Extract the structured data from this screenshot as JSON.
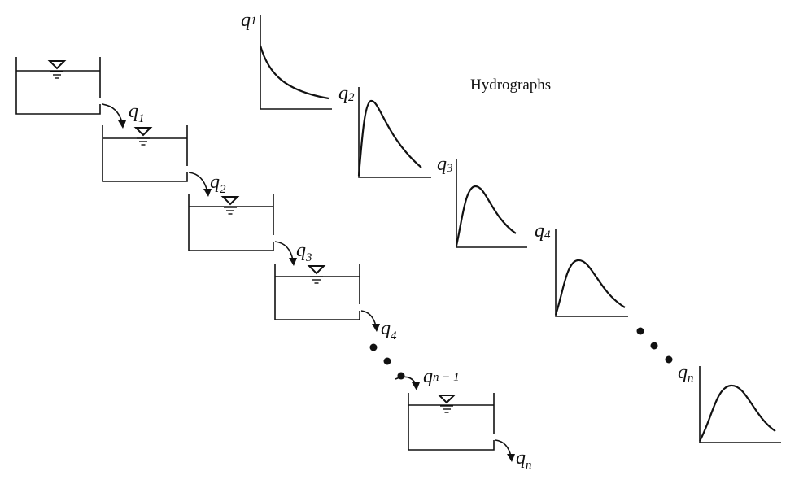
{
  "title": "Hydrographs",
  "flow_labels": [
    {
      "base": "q",
      "sub": "1"
    },
    {
      "base": "q",
      "sub": "2"
    },
    {
      "base": "q",
      "sub": "3"
    },
    {
      "base": "q",
      "sub": "4"
    },
    {
      "base": "q",
      "sub": "n − 1"
    },
    {
      "base": "q",
      "sub": "n"
    }
  ],
  "hydrograph_labels": [
    {
      "base": "q",
      "sub": "1"
    },
    {
      "base": "q",
      "sub": "2"
    },
    {
      "base": "q",
      "sub": "3"
    },
    {
      "base": "q",
      "sub": "4"
    },
    {
      "base": "q",
      "sub": "n"
    }
  ]
}
